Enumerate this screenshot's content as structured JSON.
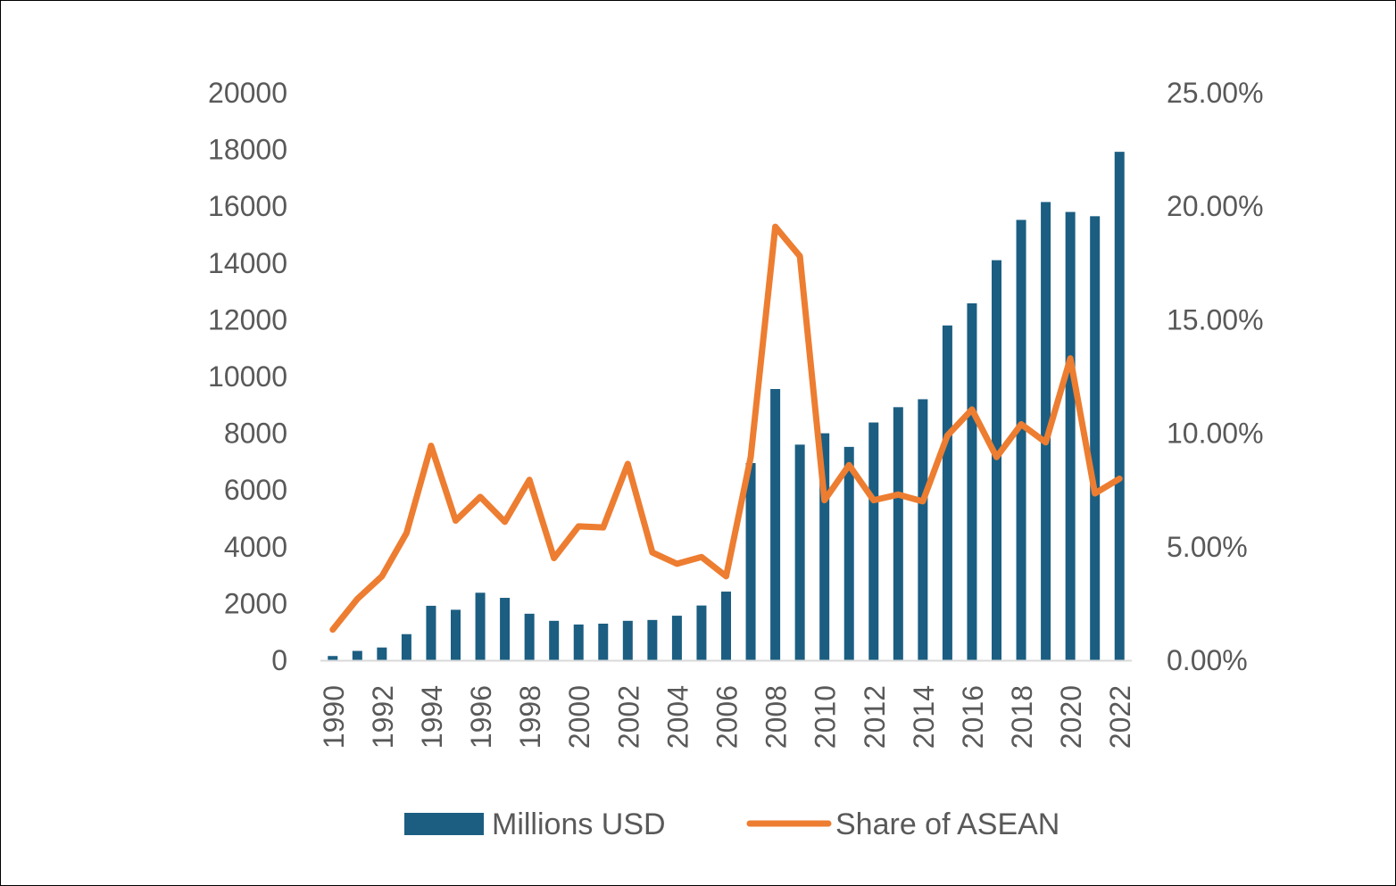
{
  "chart_data": {
    "type": "bar",
    "categories": [
      "1990",
      "1991",
      "1992",
      "1993",
      "1994",
      "1995",
      "1996",
      "1997",
      "1998",
      "1999",
      "2000",
      "2001",
      "2002",
      "2003",
      "2004",
      "2005",
      "2006",
      "2007",
      "2008",
      "2009",
      "2010",
      "2011",
      "2012",
      "2013",
      "2014",
      "2015",
      "2016",
      "2017",
      "2018",
      "2019",
      "2020",
      "2021",
      "2022"
    ],
    "x_tick_labels": [
      "1990",
      "1992",
      "1994",
      "1996",
      "1998",
      "2000",
      "2002",
      "2004",
      "2006",
      "2008",
      "2010",
      "2012",
      "2014",
      "2016",
      "2018",
      "2020",
      "2022"
    ],
    "series": [
      {
        "name": "Millions USD",
        "type": "bar",
        "axis": "left",
        "color": "#1b5e82",
        "values": [
          150,
          330,
          450,
          920,
          1920,
          1780,
          2380,
          2200,
          1640,
          1390,
          1260,
          1290,
          1390,
          1420,
          1570,
          1930,
          2420,
          6950,
          9560,
          7600,
          8000,
          7520,
          8380,
          8920,
          9200,
          11800,
          12580,
          14100,
          15520,
          16150,
          15800,
          15650,
          17920
        ]
      },
      {
        "name": "Share of ASEAN",
        "type": "line",
        "axis": "right",
        "color": "#ed7d31",
        "values": [
          1.35,
          2.7,
          3.7,
          5.6,
          9.45,
          6.15,
          7.2,
          6.1,
          7.95,
          4.5,
          5.9,
          5.85,
          8.65,
          4.75,
          4.25,
          4.55,
          3.7,
          8.95,
          19.1,
          17.8,
          7.05,
          8.6,
          7.05,
          7.3,
          7.0,
          9.9,
          11.05,
          8.95,
          10.4,
          9.6,
          13.3,
          7.35,
          8.0
        ]
      }
    ],
    "y_left": {
      "ylim": [
        0,
        20000
      ],
      "ticks": [
        "0",
        "2000",
        "4000",
        "6000",
        "8000",
        "10000",
        "12000",
        "14000",
        "16000",
        "18000",
        "20000"
      ]
    },
    "y_right": {
      "ylim": [
        0,
        25
      ],
      "ticks": [
        "0.00%",
        "5.00%",
        "10.00%",
        "15.00%",
        "20.00%",
        "25.00%"
      ]
    },
    "grid": false,
    "legend": {
      "position": "bottom",
      "entries": [
        "Millions USD",
        "Share of ASEAN"
      ]
    }
  }
}
